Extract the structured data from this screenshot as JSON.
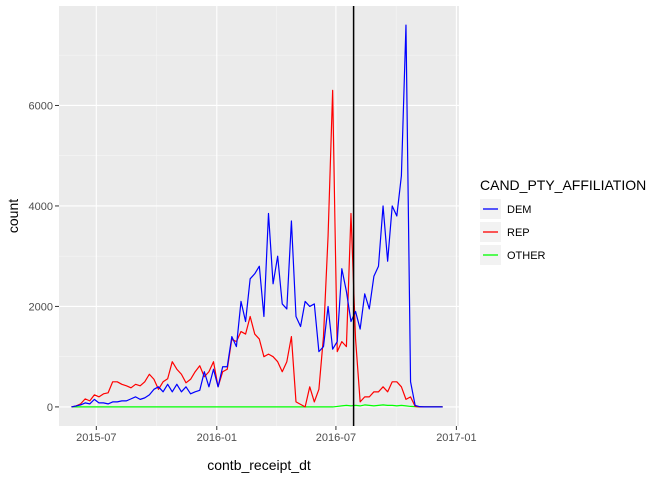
{
  "chart_data": {
    "type": "line",
    "xlabel": "contb_receipt_dt",
    "ylabel": "count",
    "x_ticks": [
      "2015-07",
      "2016-01",
      "2016-07",
      "2017-01"
    ],
    "y_ticks": [
      0,
      2000,
      4000,
      6000
    ],
    "xlim": [
      "2015-05-05",
      "2017-01-05"
    ],
    "ylim": [
      -380,
      7980
    ],
    "grid": true,
    "legend": {
      "title": "CAND_PTY_AFFILIATION",
      "position": "right"
    },
    "vline": {
      "x": "2016-07-28",
      "color": "#000000"
    },
    "x": [
      "2015-05-24",
      "2015-05-31",
      "2015-06-07",
      "2015-06-14",
      "2015-06-21",
      "2015-06-28",
      "2015-07-05",
      "2015-07-12",
      "2015-07-19",
      "2015-07-26",
      "2015-08-02",
      "2015-08-09",
      "2015-08-16",
      "2015-08-23",
      "2015-08-30",
      "2015-09-06",
      "2015-09-13",
      "2015-09-20",
      "2015-09-27",
      "2015-10-04",
      "2015-10-11",
      "2015-10-18",
      "2015-10-25",
      "2015-11-01",
      "2015-11-08",
      "2015-11-15",
      "2015-11-22",
      "2015-11-29",
      "2015-12-06",
      "2015-12-13",
      "2015-12-20",
      "2015-12-27",
      "2016-01-03",
      "2016-01-10",
      "2016-01-17",
      "2016-01-24",
      "2016-01-31",
      "2016-02-07",
      "2016-02-14",
      "2016-02-21",
      "2016-02-28",
      "2016-03-06",
      "2016-03-13",
      "2016-03-20",
      "2016-03-27",
      "2016-04-03",
      "2016-04-10",
      "2016-04-17",
      "2016-04-24",
      "2016-05-01",
      "2016-05-08",
      "2016-05-15",
      "2016-05-22",
      "2016-05-29",
      "2016-06-05",
      "2016-06-12",
      "2016-06-19",
      "2016-06-26",
      "2016-07-03",
      "2016-07-10",
      "2016-07-17",
      "2016-07-24",
      "2016-07-31",
      "2016-08-07",
      "2016-08-14",
      "2016-08-21",
      "2016-08-28",
      "2016-09-04",
      "2016-09-11",
      "2016-09-18",
      "2016-09-25",
      "2016-10-02",
      "2016-10-09",
      "2016-10-16",
      "2016-10-23",
      "2016-10-30",
      "2016-11-06",
      "2016-11-13",
      "2016-11-20",
      "2016-11-27",
      "2016-12-04",
      "2016-12-11"
    ],
    "series": [
      {
        "name": "DEM",
        "color": "#0000ff",
        "values": [
          0,
          20,
          40,
          80,
          60,
          150,
          80,
          80,
          60,
          100,
          100,
          120,
          120,
          160,
          200,
          150,
          180,
          240,
          350,
          400,
          300,
          450,
          300,
          450,
          300,
          400,
          260,
          300,
          330,
          700,
          400,
          750,
          400,
          800,
          800,
          1400,
          1200,
          2100,
          1700,
          2550,
          2650,
          2800,
          1800,
          3850,
          2450,
          3000,
          2050,
          1950,
          3700,
          1800,
          1600,
          2100,
          2000,
          2050,
          1100,
          1200,
          2000,
          1150,
          1300,
          2750,
          2300,
          1700,
          1900,
          1550,
          2250,
          1950,
          2600,
          2800,
          4000,
          2900,
          4000,
          3800,
          4600,
          7600,
          500,
          30,
          5,
          0,
          0,
          0,
          0,
          0
        ]
      },
      {
        "name": "REP",
        "color": "#ff0000",
        "values": [
          0,
          20,
          60,
          160,
          120,
          240,
          200,
          260,
          280,
          500,
          500,
          450,
          420,
          380,
          450,
          420,
          500,
          650,
          550,
          350,
          500,
          560,
          900,
          750,
          650,
          480,
          550,
          700,
          820,
          600,
          700,
          900,
          400,
          700,
          750,
          1350,
          1300,
          1500,
          1450,
          1800,
          1450,
          1350,
          1000,
          1050,
          1000,
          900,
          700,
          900,
          1400,
          100,
          50,
          0,
          400,
          100,
          350,
          1400,
          3400,
          6300,
          1100,
          1300,
          1200,
          3850,
          1350,
          100,
          200,
          200,
          300,
          300,
          400,
          300,
          500,
          500,
          400,
          150,
          200,
          10,
          0,
          0,
          0,
          0,
          0,
          0
        ]
      },
      {
        "name": "OTHER",
        "color": "#00ff00",
        "values": [
          0,
          0,
          0,
          0,
          0,
          0,
          0,
          0,
          0,
          0,
          0,
          0,
          0,
          0,
          0,
          0,
          0,
          0,
          0,
          0,
          0,
          0,
          0,
          0,
          0,
          0,
          0,
          0,
          0,
          0,
          0,
          0,
          0,
          0,
          0,
          0,
          0,
          0,
          0,
          0,
          0,
          0,
          0,
          0,
          0,
          0,
          0,
          0,
          0,
          0,
          0,
          0,
          0,
          0,
          0,
          0,
          0,
          0,
          10,
          20,
          30,
          20,
          30,
          20,
          40,
          30,
          20,
          30,
          40,
          30,
          30,
          20,
          30,
          20,
          10,
          5,
          0,
          0,
          0,
          0,
          0,
          0
        ]
      }
    ]
  }
}
